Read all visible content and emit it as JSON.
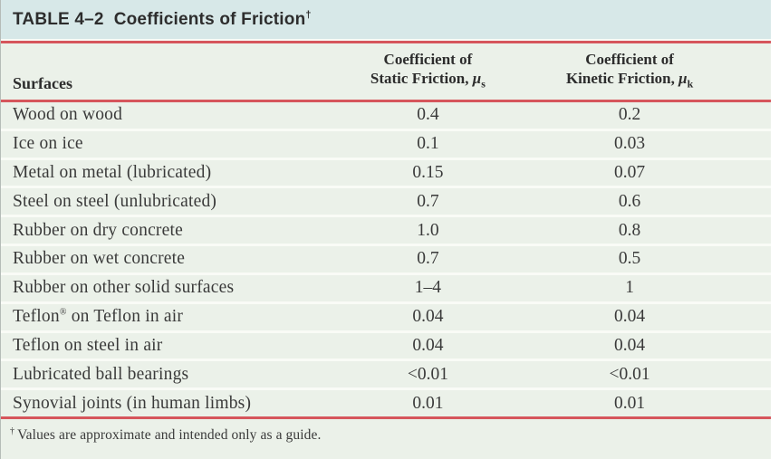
{
  "table": {
    "title": {
      "label": "TABLE 4–2",
      "text": "Coefficients of Friction",
      "dagger": "†"
    },
    "columns": {
      "surfaces": "Surfaces",
      "static": {
        "line1": "Coefficient of",
        "line2": "Static Friction, ",
        "symbol": "μ",
        "subscript": "s"
      },
      "kinetic": {
        "line1": "Coefficient of",
        "line2": "Kinetic Friction, ",
        "symbol": "μ",
        "subscript": "k"
      }
    },
    "rows": [
      {
        "surface": "Wood on wood",
        "static": "0.4",
        "kinetic": "0.2"
      },
      {
        "surface": "Ice on ice",
        "static": "0.1",
        "kinetic": "0.03"
      },
      {
        "surface": "Metal on metal (lubricated)",
        "static": "0.15",
        "kinetic": "0.07"
      },
      {
        "surface": "Steel on steel (unlubricated)",
        "static": "0.7",
        "kinetic": "0.6"
      },
      {
        "surface": "Rubber on dry concrete",
        "static": "1.0",
        "kinetic": "0.8"
      },
      {
        "surface": "Rubber on wet concrete",
        "static": "0.7",
        "kinetic": "0.5"
      },
      {
        "surface": "Rubber on other solid surfaces",
        "static": "1–4",
        "kinetic": "1"
      },
      {
        "surface": "Teflon® on Teflon in air",
        "static": "0.04",
        "kinetic": "0.04"
      },
      {
        "surface": "Teflon on steel in air",
        "static": "0.04",
        "kinetic": "0.04"
      },
      {
        "surface": "Lubricated ball bearings",
        "static": "<0.01",
        "kinetic": "<0.01"
      },
      {
        "surface": "Synovial joints (in human limbs)",
        "static": "0.01",
        "kinetic": "0.01"
      }
    ],
    "footnote": {
      "dagger": "†",
      "text": "Values are approximate and intended only as a guide."
    }
  },
  "chart_data": {
    "type": "table",
    "title": "TABLE 4–2 Coefficients of Friction†",
    "categories": [
      "Wood on wood",
      "Ice on ice",
      "Metal on metal (lubricated)",
      "Steel on steel (unlubricated)",
      "Rubber on dry concrete",
      "Rubber on wet concrete",
      "Rubber on other solid surfaces",
      "Teflon® on Teflon in air",
      "Teflon on steel in air",
      "Lubricated ball bearings",
      "Synovial joints (in human limbs)"
    ],
    "series": [
      {
        "name": "Coefficient of Static Friction, μs",
        "values": [
          "0.4",
          "0.1",
          "0.15",
          "0.7",
          "1.0",
          "0.7",
          "1–4",
          "0.04",
          "0.04",
          "<0.01",
          "0.01"
        ]
      },
      {
        "name": "Coefficient of Kinetic Friction, μk",
        "values": [
          "0.2",
          "0.03",
          "0.07",
          "0.6",
          "0.8",
          "0.5",
          "1",
          "0.04",
          "0.04",
          "<0.01",
          "0.01"
        ]
      }
    ],
    "footnote": "† Values are approximate and intended only as a guide."
  },
  "colors": {
    "title_bg": "#d7e8e8",
    "body_bg": "#ebf1e9",
    "rule_red": "#d6565c",
    "separator": "#f9fbf6",
    "edge": "#b5bcb8",
    "text_dark": "#2d2d2d",
    "text_body": "#3a3a3a"
  }
}
